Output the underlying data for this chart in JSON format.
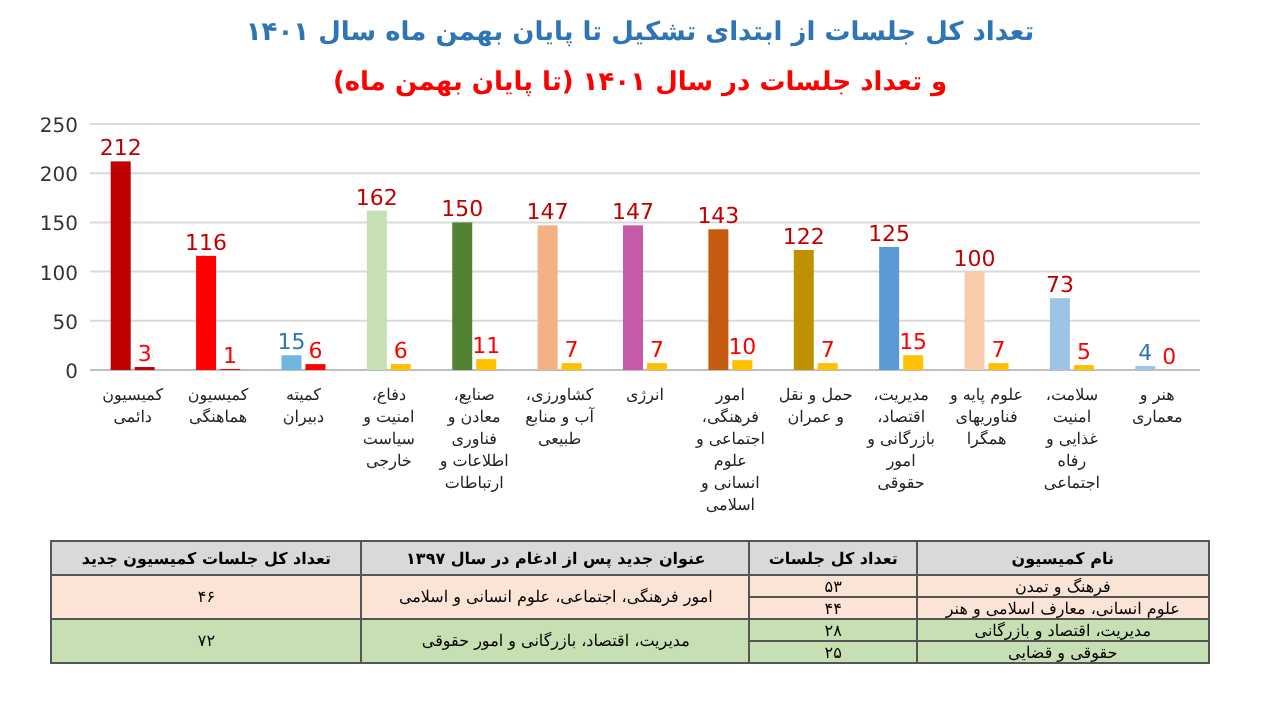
{
  "chart_data": {
    "type": "bar",
    "title": "تعداد کل جلسات از ابتدای تشکیل تا پایان بهمن ماه سال ۱۴۰۱",
    "subtitle": "و تعداد جلسات در سال ۱۴۰۱ (تا پایان بهمن ماه)",
    "categories": [
      "کمیسیون دائمی",
      "کمیسیون هماهنگی",
      "کمیته دبیران",
      "دفاع، امنیت و سیاست خارجی",
      "صنایع، معادن و فناوری اطلاعات و ارتباطات",
      "کشاورزی، آب و منابع طبیعی",
      "انرژی",
      "امور فرهنگی، اجتماعی و علوم انسانی و اسلامی",
      "حمل و نقل و عمران",
      "مدیریت، اقتصاد، بازرگانی و امور حقوقی",
      "علوم پایه و فناوریهای همگرا",
      "سلامت، امنیت غذایی و رفاه اجتماعی",
      "هنر و معماری"
    ],
    "series": [
      {
        "colors": [
          "#c00000",
          "#ff0000",
          "#6fb7e0",
          "#c6e0b4",
          "#548235",
          "#f4b183",
          "#c55aa8",
          "#c55a11",
          "#bf9000",
          "#5b9bd5",
          "#f8cbad",
          "#9dc3e6",
          "#9dc3e6"
        ],
        "values": [
          212,
          116,
          15,
          162,
          150,
          147,
          147,
          143,
          122,
          125,
          100,
          73,
          4
        ]
      },
      {
        "colors": [
          "#c00000",
          "#ff0000",
          "#ff0000",
          "#ffc000",
          "#ffc000",
          "#ffc000",
          "#ffc000",
          "#ffc000",
          "#ffc000",
          "#ffc000",
          "#ffc000",
          "#ffc000",
          "#ffc000"
        ],
        "values": [
          3,
          1,
          6,
          6,
          11,
          7,
          7,
          10,
          7,
          15,
          7,
          5,
          0
        ]
      }
    ],
    "ylim": [
      0,
      250
    ],
    "yticks": [
      0,
      50,
      100,
      150,
      200,
      250
    ],
    "grid": "y",
    "data_labels": true,
    "annotations": [
      "نام کمیسیون",
      "تعداد کل جلسات",
      "عنوان جدید پس از ادغام در سال ۱۳۹۷",
      "تعداد کل جلسات کمیسیون جدید",
      "فرهنگ و تمدن",
      "۵۳",
      "امور فرهنگی، اجتماعی، علوم انسانی و اسلامی",
      "۴۶",
      "علوم انسانی، معارف اسلامی و هنر",
      "۴۴",
      "مدیریت، اقتصاد و بازرگانی",
      "۲۸",
      "مدیریت، اقتصاد، بازرگانی و امور حقوقی",
      "۷۲",
      "حقوقی و قضایی",
      "۲۵"
    ]
  }
}
